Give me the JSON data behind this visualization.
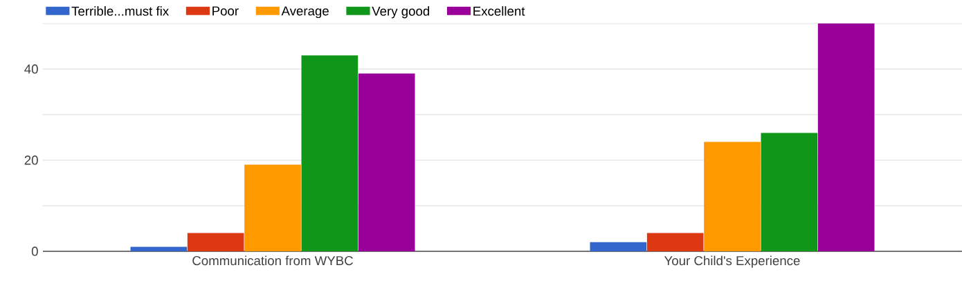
{
  "chart_data": {
    "type": "bar",
    "categories": [
      "Communication from WYBC",
      "Your Child's Experience"
    ],
    "series": [
      {
        "name": "Terrible...must fix",
        "color": "#3366cc",
        "values": [
          1,
          2
        ]
      },
      {
        "name": "Poor",
        "color": "#dc3912",
        "values": [
          4,
          4
        ]
      },
      {
        "name": "Average",
        "color": "#ff9900",
        "values": [
          19,
          24
        ]
      },
      {
        "name": "Very good",
        "color": "#109618",
        "values": [
          43,
          26
        ]
      },
      {
        "name": "Excellent",
        "color": "#990099",
        "values": [
          39,
          50
        ]
      }
    ],
    "ylim": [
      0,
      50
    ],
    "yticks": [
      0,
      {
        "value": 10,
        "label": null
      },
      20,
      {
        "value": 30,
        "label": null
      },
      40,
      {
        "value": 50,
        "label": null
      }
    ],
    "grid": "y",
    "legend": "top left"
  }
}
